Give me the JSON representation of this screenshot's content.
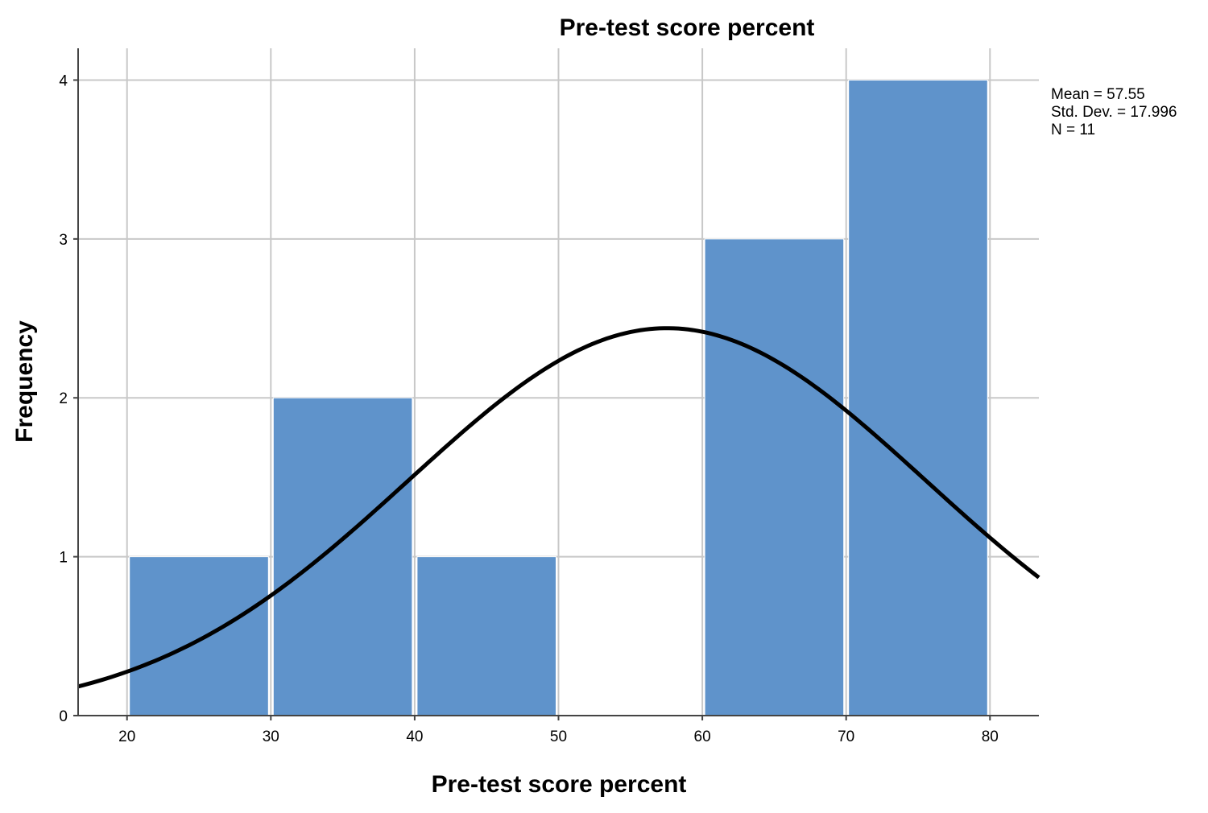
{
  "chart_data": {
    "type": "bar",
    "title": "Pre-test score percent",
    "xlabel": "Pre-test score percent",
    "ylabel": "Frequency",
    "bins": [
      [
        20,
        30
      ],
      [
        30,
        40
      ],
      [
        40,
        50
      ],
      [
        50,
        60
      ],
      [
        60,
        70
      ],
      [
        70,
        80
      ]
    ],
    "values": [
      1,
      2,
      1,
      0,
      3,
      4
    ],
    "xlim": [
      16.6,
      83.4
    ],
    "ylim": [
      0,
      4.2
    ],
    "xticks": [
      20,
      30,
      40,
      50,
      60,
      70,
      80
    ],
    "yticks": [
      0,
      1,
      2,
      3,
      4
    ],
    "grid": true,
    "normal_curve": {
      "mean": 57.55,
      "sd": 17.996,
      "n": 11,
      "bin_width": 10
    },
    "stats": {
      "mean": "Mean = 57.55",
      "sd": "Std. Dev. = 17.996",
      "n": "N = 11"
    },
    "colors": {
      "bar": "#5f93cb",
      "curve": "#000000",
      "grid": "#c8c8c8"
    }
  }
}
